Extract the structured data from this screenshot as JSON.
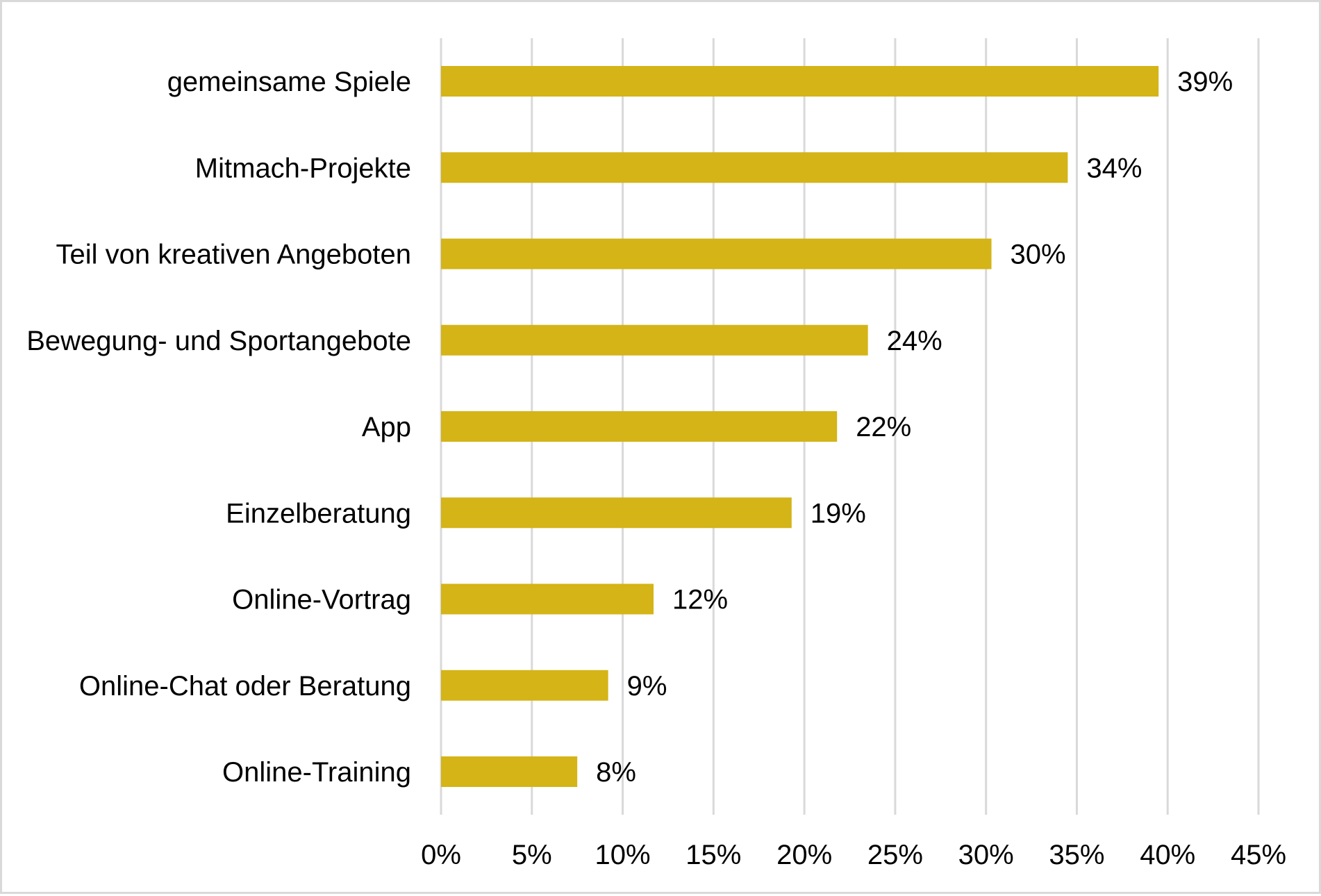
{
  "chart_data": {
    "type": "bar",
    "orientation": "horizontal",
    "title": "",
    "xlabel": "",
    "ylabel": "",
    "categories": [
      "gemeinsame Spiele",
      "Mitmach-Projekte",
      "Teil von kreativen Angeboten",
      "Bewegung- und Sportangebote",
      "App",
      "Einzelberatung",
      "Online-Vortrag",
      "Online-Chat oder Beratung",
      "Online-Training"
    ],
    "values": [
      39.5,
      34.5,
      30.3,
      23.5,
      21.8,
      19.3,
      11.7,
      9.2,
      7.5
    ],
    "value_labels": [
      "39%",
      "34%",
      "30%",
      "24%",
      "22%",
      "19%",
      "12%",
      "9%",
      "8%"
    ],
    "xlim": [
      0,
      45
    ],
    "x_ticks": [
      0,
      5,
      10,
      15,
      20,
      25,
      30,
      35,
      40,
      45
    ],
    "x_tick_labels": [
      "0%",
      "5%",
      "10%",
      "15%",
      "20%",
      "25%",
      "30%",
      "35%",
      "40%",
      "45%"
    ],
    "grid": "vertical",
    "legend": "none",
    "colors": {
      "bar": "#d4b417",
      "grid": "#d9d9d9",
      "frame": "#d9d9d9",
      "text": "#000000"
    }
  }
}
